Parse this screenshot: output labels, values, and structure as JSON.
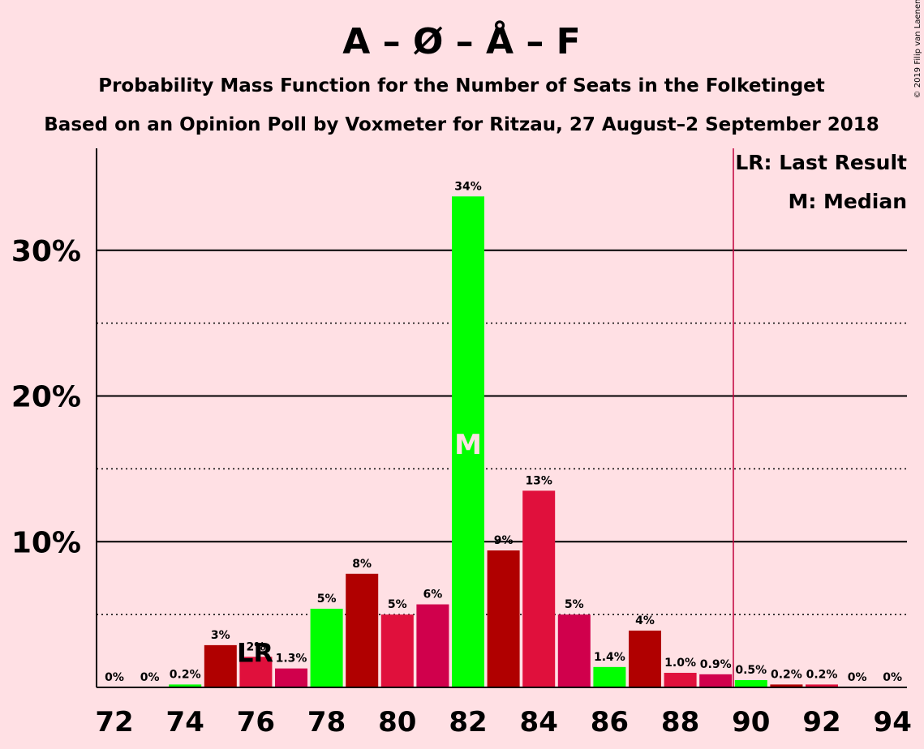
{
  "chart_data": {
    "type": "bar",
    "title": "A – Ø – Å – F",
    "subtitle1": "Probability Mass Function for the Number of Seats in the Folketinget",
    "subtitle2": "Based on an Opinion Poll by Voxmeter for Ritzau, 27 August–2 September 2018",
    "copyright": "© 2019 Filip van Laenen",
    "legend": [
      "LR: Last Result",
      "M: Median"
    ],
    "legend_placement": "top-right",
    "xlabel": "",
    "ylabel": "",
    "ylim": [
      0,
      37
    ],
    "y_ticks": [
      {
        "value": 10,
        "label": "10%"
      },
      {
        "value": 20,
        "label": "20%"
      },
      {
        "value": 30,
        "label": "30%"
      }
    ],
    "y_minor_ticks": [
      5,
      15,
      25
    ],
    "x_ticks": [
      72,
      74,
      76,
      78,
      80,
      82,
      84,
      86,
      88,
      90,
      92,
      94
    ],
    "x_range": [
      72,
      94
    ],
    "majority_line": 89.5,
    "last_result": 77,
    "last_result_label": "LR",
    "median": 82,
    "median_label": "M",
    "colors": {
      "background": "#FFE0E4",
      "green": "#00FF00",
      "dark_red": "#B00000",
      "crimson": "#E0103C",
      "magenta_red": "#D0004C",
      "majority_line": "#C0003C"
    },
    "seats": [
      72,
      73,
      74,
      75,
      76,
      77,
      78,
      79,
      80,
      81,
      82,
      83,
      84,
      85,
      86,
      87,
      88,
      89,
      90,
      91,
      92,
      93,
      94
    ],
    "values": [
      0,
      0,
      0.2,
      2.9,
      2.1,
      1.3,
      5.4,
      7.8,
      5.0,
      5.7,
      33.7,
      9.4,
      13.5,
      5.0,
      1.4,
      3.9,
      1.0,
      0.9,
      0.5,
      0.2,
      0.2,
      0,
      0
    ],
    "labels": [
      "0%",
      "0%",
      "0.2%",
      "3%",
      "2%",
      "1.3%",
      "5%",
      "8%",
      "5%",
      "6%",
      "34%",
      "9%",
      "13%",
      "5%",
      "1.4%",
      "4%",
      "1.0%",
      "0.9%",
      "0.5%",
      "0.2%",
      "0.2%",
      "0%",
      "0%"
    ],
    "bar_colors": [
      "green",
      "dark_red",
      "green",
      "dark_red",
      "crimson",
      "magenta_red",
      "green",
      "dark_red",
      "crimson",
      "magenta_red",
      "green",
      "dark_red",
      "crimson",
      "magenta_red",
      "green",
      "dark_red",
      "crimson",
      "magenta_red",
      "green",
      "dark_red",
      "crimson",
      "magenta_red",
      "green"
    ]
  }
}
